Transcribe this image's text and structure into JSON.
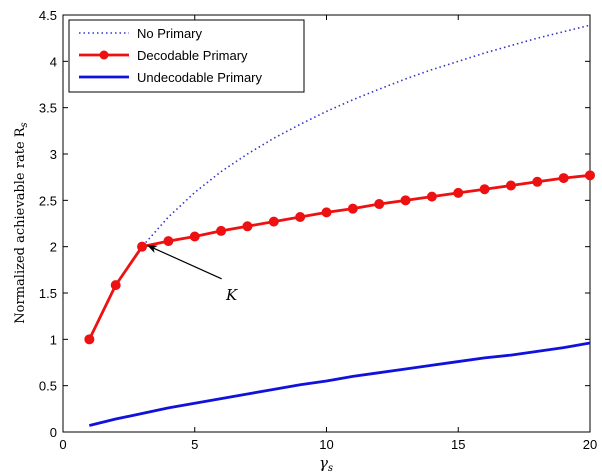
{
  "chart_data": {
    "type": "line",
    "xlabel": "γ",
    "xlabel_sub": "s",
    "ylabel": "Normalized achievable rate R",
    "ylabel_sub": "s",
    "xlim": [
      0,
      20
    ],
    "ylim": [
      0,
      4.5
    ],
    "x_ticks": [
      "0",
      "5",
      "10",
      "15",
      "20"
    ],
    "y_ticks": [
      "0",
      "0.5",
      "1",
      "1.5",
      "2",
      "2.5",
      "3",
      "3.5",
      "4",
      "4.5"
    ],
    "grid": false,
    "legend_position": "top-left",
    "series": [
      {
        "name": "No Primary",
        "color": "#3333cc",
        "style": "dotted",
        "marker": "none",
        "x": [
          1,
          2,
          3,
          4,
          5,
          6,
          7,
          8,
          9,
          10,
          11,
          12,
          13,
          14,
          15,
          16,
          17,
          18,
          19,
          20
        ],
        "y": [
          1.0,
          1.585,
          2.0,
          2.32,
          2.585,
          2.81,
          3.0,
          3.17,
          3.32,
          3.46,
          3.585,
          3.7,
          3.81,
          3.91,
          4.0,
          4.09,
          4.17,
          4.25,
          4.32,
          4.39
        ]
      },
      {
        "name": "Decodable Primary",
        "color": "#ee1111",
        "style": "solid",
        "marker": "circle",
        "x": [
          1,
          2,
          3,
          4,
          5,
          6,
          7,
          8,
          9,
          10,
          11,
          12,
          13,
          14,
          15,
          16,
          17,
          18,
          19,
          20
        ],
        "y": [
          1.0,
          1.585,
          2.0,
          2.06,
          2.11,
          2.17,
          2.22,
          2.27,
          2.32,
          2.37,
          2.41,
          2.46,
          2.5,
          2.54,
          2.58,
          2.62,
          2.66,
          2.7,
          2.74,
          2.77
        ]
      },
      {
        "name": "Undecodable Primary",
        "color": "#1111dd",
        "style": "solid",
        "marker": "none",
        "x": [
          1,
          2,
          3,
          4,
          5,
          6,
          7,
          8,
          9,
          10,
          11,
          12,
          13,
          14,
          15,
          16,
          17,
          18,
          19,
          20
        ],
        "y": [
          0.07,
          0.14,
          0.2,
          0.26,
          0.31,
          0.36,
          0.41,
          0.46,
          0.51,
          0.55,
          0.6,
          0.64,
          0.68,
          0.72,
          0.76,
          0.8,
          0.83,
          0.87,
          0.91,
          0.96
        ]
      }
    ],
    "annotations": [
      {
        "text": "K",
        "point_x": 3,
        "point_y": 2.0,
        "text_x": 6.4,
        "text_y": 1.48
      }
    ]
  }
}
